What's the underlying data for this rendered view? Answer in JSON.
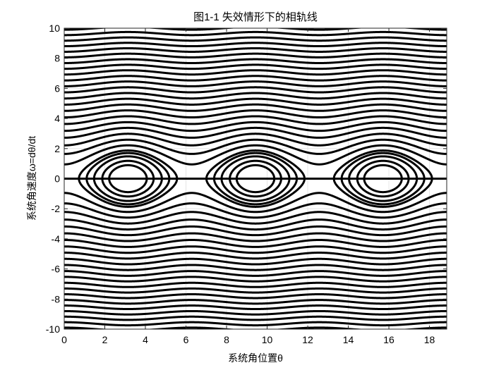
{
  "chart_data": {
    "type": "line",
    "title": "图1-1 失效情形下的相轨线",
    "xlabel": "系统角位置θ",
    "ylabel": "系统角速度ω=dθ/dt",
    "xlim": [
      0,
      18.85
    ],
    "ylim": [
      -10,
      10
    ],
    "xticks": [
      0,
      2,
      4,
      6,
      8,
      10,
      12,
      14,
      16,
      18
    ],
    "yticks": [
      -10,
      -8,
      -6,
      -4,
      -2,
      0,
      2,
      4,
      6,
      8,
      10
    ],
    "grid": true,
    "legend": "none",
    "line_color": "#000000",
    "grid_color": "#e6e6e6",
    "family": {
      "equation": "omega^2 = C - 2*cos(theta)",
      "theta_range": [
        0,
        18.85
      ],
      "oscillating_C": [
        -1.2,
        -0.6,
        0.2,
        0.9,
        1.5
      ],
      "horizontal_line_omega": 0,
      "rotating_C": [
        2.9,
        4.7,
        6.9,
        9.4,
        12.1,
        15.2,
        18.6,
        22.3,
        26.2,
        30.4,
        34.9,
        39.7,
        44.6,
        49.9,
        55.3,
        61.0,
        67.0,
        73.1,
        79.5,
        86.1,
        93.0,
        100.0,
        107.5
      ]
    }
  }
}
